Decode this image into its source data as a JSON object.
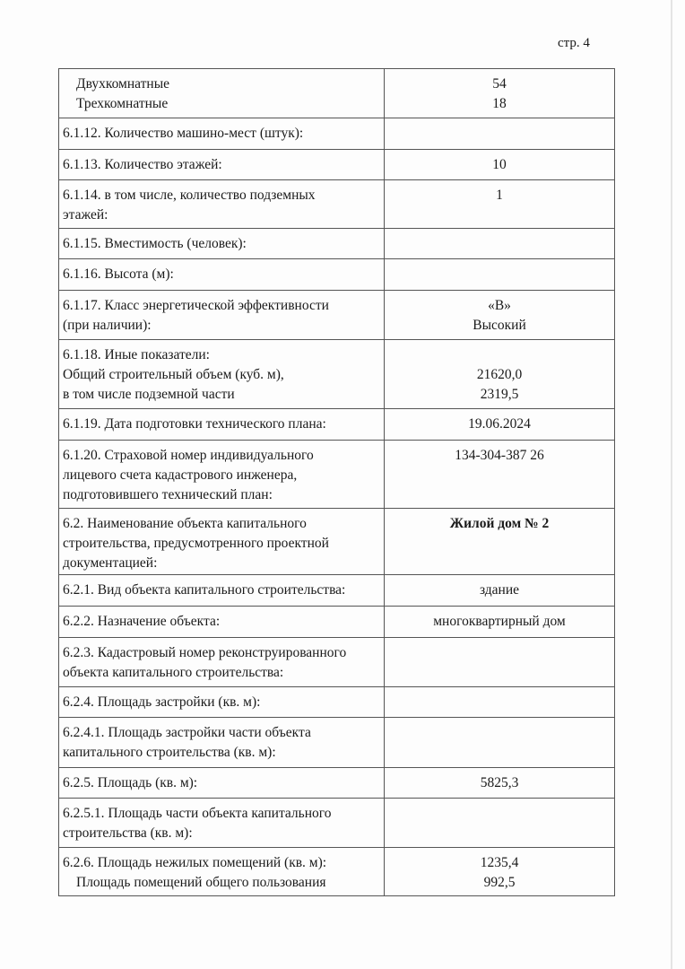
{
  "page_number": "стр. 4",
  "rows": [
    {
      "label": [
        "Двухкомнатные",
        "Трехкомнатные"
      ],
      "value": [
        "54",
        "18"
      ]
    },
    {
      "label": [
        "6.1.12. Количество машино-мест (штук):"
      ],
      "value": []
    },
    {
      "label": [
        "6.1.13. Количество этажей:"
      ],
      "value": [
        "10"
      ]
    },
    {
      "label": [
        "6.1.14. в том числе, количество подземных",
        "этажей:"
      ],
      "value": [
        "1"
      ]
    },
    {
      "label": [
        "6.1.15. Вместимость (человек):"
      ],
      "value": []
    },
    {
      "label": [
        "6.1.16. Высота (м):"
      ],
      "value": []
    },
    {
      "label": [
        "6.1.17. Класс энергетической эффективности",
        "(при наличии):"
      ],
      "value": [
        "«В»",
        "Высокий"
      ]
    },
    {
      "label": [
        "6.1.18. Иные показатели:",
        "Общий строительный объем (куб. м),",
        "в том числе подземной части"
      ],
      "value": [
        "",
        "21620,0",
        "2319,5"
      ]
    },
    {
      "label": [
        "6.1.19. Дата подготовки технического плана:"
      ],
      "value": [
        "19.06.2024"
      ]
    },
    {
      "label": [
        "6.1.20. Страховой номер индивидуального",
        "лицевого счета кадастрового инженера,",
        "подготовившего технический план:"
      ],
      "value": [
        "134-304-387 26"
      ]
    },
    {
      "label": [
        "6.2. Наименование объекта капитального",
        "строительства, предусмотренного проектной",
        "документацией:"
      ],
      "value": [
        "Жилой дом № 2"
      ]
    },
    {
      "label": [
        "6.2.1. Вид объекта капитального строительства:"
      ],
      "value": [
        "здание"
      ]
    },
    {
      "label": [
        "6.2.2. Назначение объекта:"
      ],
      "value": [
        "многоквартирный дом"
      ]
    },
    {
      "label": [
        "6.2.3. Кадастровый номер реконструированного",
        "объекта капитального строительства:"
      ],
      "value": []
    },
    {
      "label": [
        "6.2.4. Площадь застройки (кв. м):"
      ],
      "value": []
    },
    {
      "label": [
        "6.2.4.1. Площадь застройки части объекта",
        "капитального строительства (кв. м):"
      ],
      "value": []
    },
    {
      "label": [
        "6.2.5. Площадь (кв. м):"
      ],
      "value": [
        "5825,3"
      ]
    },
    {
      "label": [
        "6.2.5.1. Площадь части объекта капитального",
        "строительства (кв. м):"
      ],
      "value": []
    },
    {
      "label": [
        "6.2.6. Площадь нежилых помещений (кв. м):",
        "Площадь помещений общего пользования"
      ],
      "value": [
        "1235,4",
        "992,5"
      ]
    }
  ]
}
